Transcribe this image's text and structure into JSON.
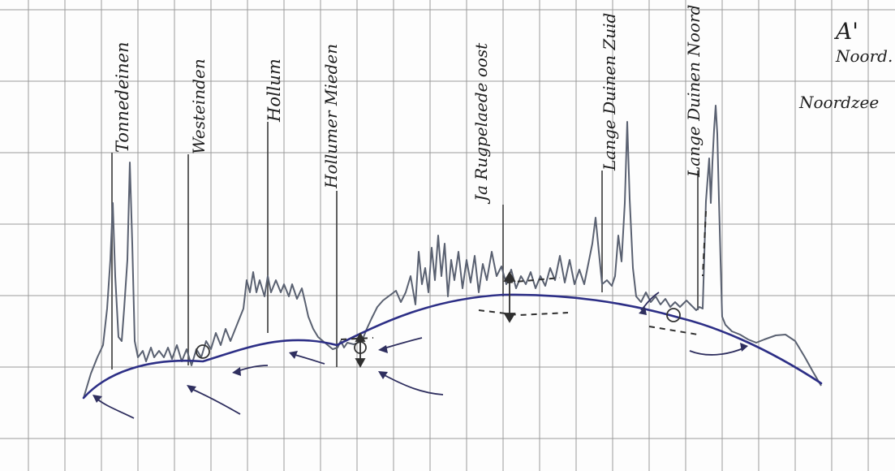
{
  "title_marker": "A'",
  "north_label": "Noord.",
  "sea_label": "Noordzee",
  "location_labels": [
    "Tonnedeinen",
    "Westeinden",
    "Hollum",
    "Hollumer Mieden",
    "Ja Rugpelaede oost",
    "Lange Duinen Zuid",
    "Lange Duinen Noord"
  ],
  "colors": {
    "paper": "#fdfdfd",
    "grid": "#9a9a9a",
    "profile": "#5a6171",
    "groundwater": "#2d2f86",
    "ink": "#1f1f1f"
  },
  "icons": [
    "down-arrow-icon",
    "arrow-icon"
  ]
}
